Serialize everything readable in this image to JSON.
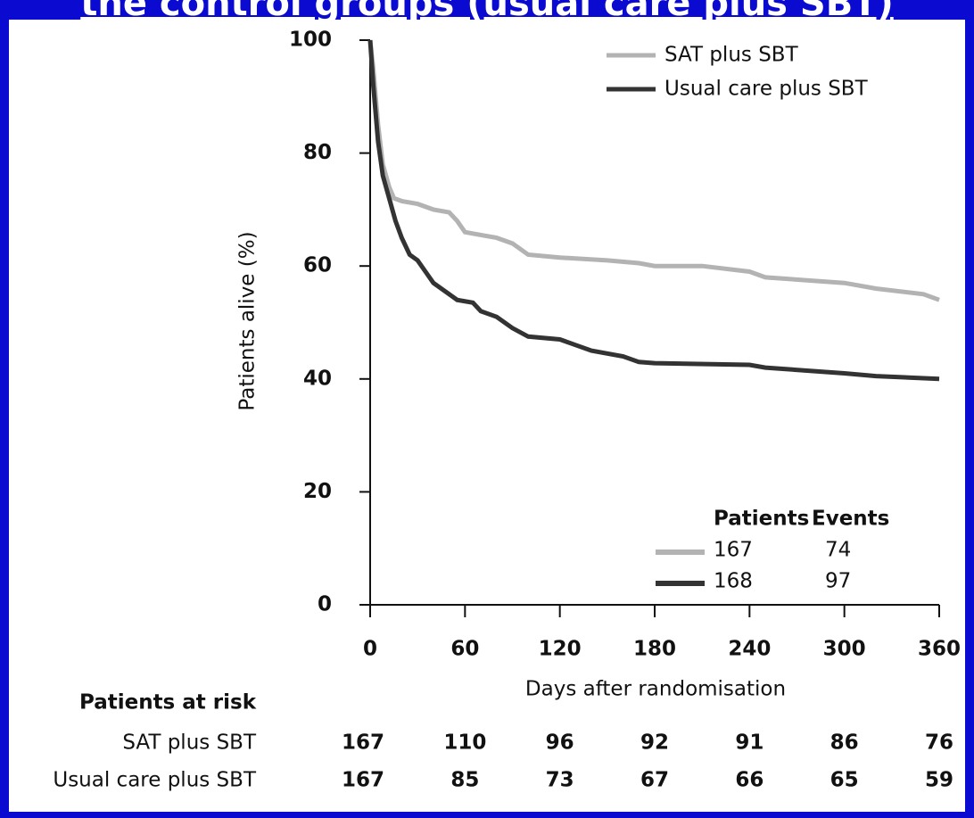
{
  "chart_data": {
    "type": "line",
    "title": "the control groups (usual care plus SBT)",
    "xlabel": "Days after randomisation",
    "ylabel": "Patients alive (%)",
    "xlim": [
      0,
      360
    ],
    "ylim": [
      0,
      100
    ],
    "xticks": [
      0,
      60,
      120,
      180,
      240,
      300,
      360
    ],
    "yticks": [
      0,
      20,
      40,
      60,
      80,
      100
    ],
    "series": [
      {
        "name": "SAT plus SBT",
        "color": "#b3b3b3",
        "x": [
          0,
          2,
          5,
          8,
          12,
          15,
          20,
          30,
          40,
          50,
          55,
          60,
          70,
          80,
          90,
          100,
          120,
          150,
          170,
          180,
          210,
          240,
          250,
          300,
          320,
          350,
          360
        ],
        "values": [
          100,
          95,
          85,
          78,
          74,
          72,
          71.5,
          71,
          70,
          69.5,
          68,
          66,
          65.5,
          65,
          64,
          62,
          61.5,
          61,
          60.5,
          60,
          60,
          59,
          58,
          57,
          56,
          55,
          54
        ]
      },
      {
        "name": "Usual care plus SBT",
        "color": "#333333",
        "x": [
          0,
          2,
          5,
          8,
          12,
          16,
          20,
          25,
          30,
          35,
          40,
          50,
          55,
          65,
          70,
          80,
          90,
          100,
          120,
          130,
          140,
          160,
          170,
          180,
          240,
          250,
          300,
          320,
          360
        ],
        "values": [
          100,
          92,
          82,
          76,
          72,
          68,
          65,
          62,
          61,
          59,
          57,
          55,
          54,
          53.5,
          52,
          51,
          49,
          47.5,
          47,
          46,
          45,
          44,
          43,
          42.8,
          42.5,
          42,
          41,
          40.5,
          40
        ]
      }
    ],
    "events_table": {
      "headers": [
        "Patients",
        "Events"
      ],
      "rows": [
        [
          167,
          74
        ],
        [
          168,
          97
        ]
      ]
    },
    "risk_table": {
      "title": "Patients at risk",
      "rows": [
        {
          "name": "SAT plus SBT",
          "values": [
            167,
            110,
            96,
            92,
            91,
            86,
            76
          ]
        },
        {
          "name": "Usual care plus SBT",
          "values": [
            167,
            85,
            73,
            67,
            66,
            65,
            59
          ]
        }
      ]
    }
  }
}
